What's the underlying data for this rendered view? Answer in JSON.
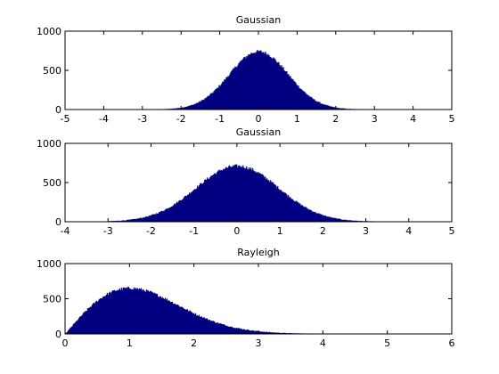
{
  "chart_data": [
    {
      "type": "bar",
      "title": "Gaussian",
      "xlim": [
        -5,
        5
      ],
      "ylim": [
        0,
        1000
      ],
      "xticks": [
        -5,
        -4,
        -3,
        -2,
        -1,
        0,
        1,
        2,
        3,
        4,
        5
      ],
      "yticks": [
        0,
        500,
        1000
      ],
      "distribution": "gaussian",
      "mean": 0.0,
      "sd": 0.76,
      "peak": 740,
      "support": [
        -3.4,
        3.4
      ],
      "color": "#000080"
    },
    {
      "type": "bar",
      "title": "Gaussian",
      "xlim": [
        -4,
        5
      ],
      "ylim": [
        0,
        1000
      ],
      "xticks": [
        -4,
        -3,
        -2,
        -1,
        0,
        1,
        2,
        3,
        4,
        5
      ],
      "yticks": [
        0,
        500,
        1000
      ],
      "distribution": "gaussian",
      "mean": 0.0,
      "sd": 0.96,
      "peak": 710,
      "support": [
        -3.0,
        3.2
      ],
      "color": "#000080"
    },
    {
      "type": "bar",
      "title": "Rayleigh",
      "xlim": [
        0,
        6
      ],
      "ylim": [
        0,
        1000
      ],
      "xticks": [
        0,
        1,
        2,
        3,
        4,
        5,
        6
      ],
      "yticks": [
        0,
        500,
        1000
      ],
      "distribution": "rayleigh",
      "sigma": 1.0,
      "peak": 650,
      "support": [
        0,
        4.0
      ],
      "color": "#000080"
    }
  ]
}
